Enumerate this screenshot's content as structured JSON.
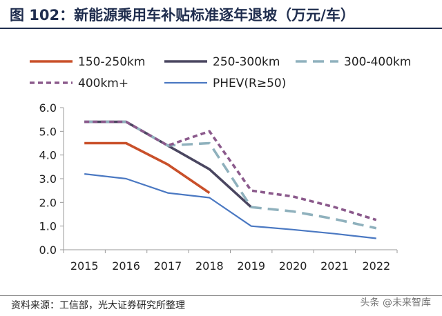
{
  "title": "图 102：新能源乘用车补贴标准逐年退坡（万元/车）",
  "source": "资料来源：工信部，光大证券研究所整理",
  "watermark": "头条 @未来智库",
  "chart_data": {
    "type": "line",
    "title": "新能源乘用车补贴标准逐年退坡（万元/车）",
    "xlabel": "",
    "ylabel": "",
    "categories": [
      "2015",
      "2016",
      "2017",
      "2018",
      "2019",
      "2020",
      "2021",
      "2022"
    ],
    "ylim": [
      0,
      6
    ],
    "yticks": [
      "0.0",
      "1.0",
      "2.0",
      "3.0",
      "4.0",
      "5.0",
      "6.0"
    ],
    "legend_position": "top",
    "series": [
      {
        "name": "150-250km",
        "color": "#c9502a",
        "style": "solid",
        "values": [
          4.5,
          4.5,
          3.6,
          2.4,
          null,
          null,
          null,
          null
        ]
      },
      {
        "name": "250-300km",
        "color": "#4a4660",
        "style": "solid",
        "values": [
          5.4,
          5.4,
          4.4,
          3.4,
          1.8,
          null,
          null,
          null
        ]
      },
      {
        "name": "300-400km",
        "color": "#8fb1bd",
        "style": "dashed",
        "values": [
          5.4,
          5.4,
          4.4,
          4.5,
          1.8,
          1.62,
          1.3,
          0.91
        ]
      },
      {
        "name": "400km+",
        "color": "#8b5a8c",
        "style": "dotted",
        "values": [
          5.4,
          5.4,
          4.4,
          5.0,
          2.5,
          2.25,
          1.8,
          1.26
        ]
      },
      {
        "name": "PHEV(R≥50)",
        "color": "#4a78c2",
        "style": "solid",
        "values": [
          3.2,
          3.0,
          2.4,
          2.2,
          1.0,
          0.85,
          0.68,
          0.48
        ]
      }
    ]
  }
}
